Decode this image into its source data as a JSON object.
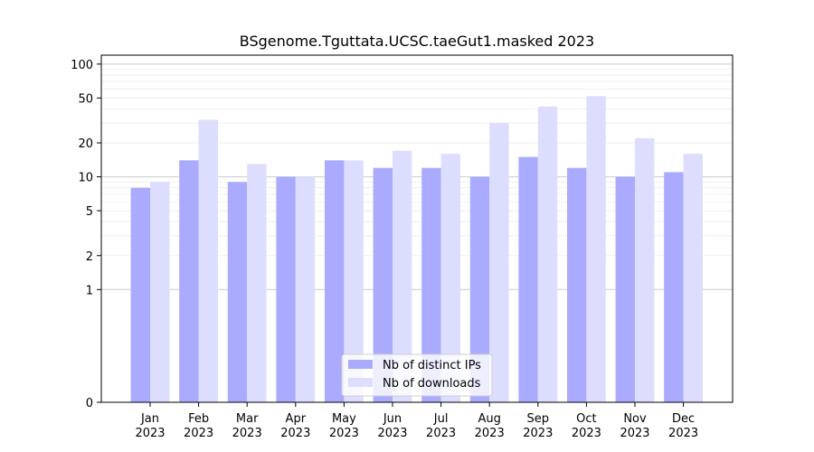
{
  "chart_data": {
    "type": "bar",
    "title": "BSgenome.Tguttata.UCSC.taeGut1.masked 2023",
    "xlabel": "",
    "ylabel": "",
    "y_scale": "symlog",
    "ylim": [
      0,
      120
    ],
    "yticks": [
      0,
      1,
      2,
      5,
      10,
      20,
      50,
      100
    ],
    "categories": [
      "Jan\n2023",
      "Feb\n2023",
      "Mar\n2023",
      "Apr\n2023",
      "May\n2023",
      "Jun\n2023",
      "Jul\n2023",
      "Aug\n2023",
      "Sep\n2023",
      "Oct\n2023",
      "Nov\n2023",
      "Dec\n2023"
    ],
    "series": [
      {
        "name": "Nb of distinct IPs",
        "color": "#aaaaff",
        "values": [
          8,
          14,
          9,
          10,
          14,
          12,
          12,
          10,
          15,
          12,
          10,
          11
        ]
      },
      {
        "name": "Nb of downloads",
        "color": "#ddddff",
        "values": [
          9,
          32,
          13,
          10,
          14,
          17,
          16,
          30,
          42,
          52,
          22,
          16
        ]
      }
    ],
    "grid": true,
    "legend_position": "lower-center"
  }
}
